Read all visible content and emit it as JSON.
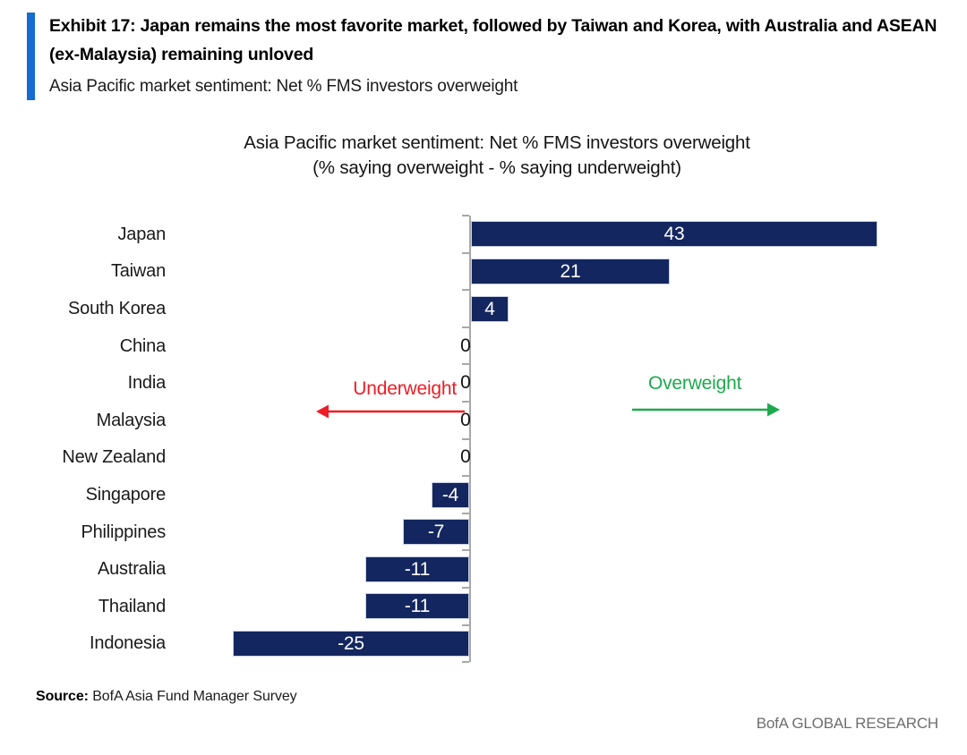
{
  "header": {
    "exhibit_title": "Exhibit 17: Japan remains the most favorite market, followed by Taiwan and Korea, with Australia and ASEAN (ex-Malaysia) remaining unloved",
    "subtitle": "Asia Pacific market sentiment: Net % FMS investors overweight"
  },
  "chart": {
    "title_line1": "Asia Pacific market sentiment: Net % FMS investors overweight",
    "title_line2": "(% saying overweight - % saying underweight)",
    "underweight_label": "Underweight",
    "overweight_label": "Overweight"
  },
  "chart_data": {
    "type": "bar",
    "orientation": "horizontal",
    "title": "Asia Pacific market sentiment: Net % FMS investors overweight",
    "subtitle": "(% saying overweight - % saying underweight)",
    "categories": [
      "Japan",
      "Taiwan",
      "South Korea",
      "China",
      "India",
      "Malaysia",
      "New Zealand",
      "Singapore",
      "Philippines",
      "Australia",
      "Thailand",
      "Indonesia"
    ],
    "values": [
      43,
      21,
      4,
      0,
      0,
      0,
      0,
      -4,
      -7,
      -11,
      -11,
      -25
    ],
    "xlim": [
      -25,
      43
    ],
    "value_label_position": "inside-center",
    "grid": false,
    "legend": false,
    "bar_color": "#13265f",
    "annotations": [
      {
        "text": "Underweight",
        "color": "#ee1c25",
        "direction": "left"
      },
      {
        "text": "Overweight",
        "color": "#1daa4d",
        "direction": "right"
      }
    ]
  },
  "footer": {
    "source_label": "Source:",
    "source_text": "BofA Asia Fund Manager Survey",
    "brand": "BofA GLOBAL RESEARCH"
  },
  "colors": {
    "bar": "#13265f",
    "accent": "#146bd2",
    "underweight_red": "#ee1c25",
    "overweight_green": "#1daa4d",
    "axis_gray": "#a8a8a8",
    "brand_gray": "#6e6e6e"
  }
}
